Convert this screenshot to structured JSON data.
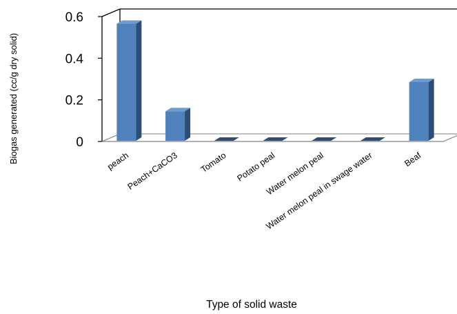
{
  "chart_data": {
    "type": "bar",
    "style": "3d-column",
    "categories": [
      "peach",
      "Peach+CaCO3",
      "Tomato",
      "Potato peal",
      "Water melon peal",
      "Water melon peal in swage water",
      "Beaf"
    ],
    "values": [
      0.565,
      0.145,
      0.0,
      0.0,
      0.0,
      0.0,
      0.285
    ],
    "ylim": [
      0,
      0.6
    ],
    "yticks": [
      "0",
      "0.2",
      "0.4",
      "0.6"
    ],
    "ytick_values": [
      0,
      0.2,
      0.4,
      0.6
    ],
    "xlabel": "Type of solid waste",
    "ylabel": "Biogas generated (cc/g dry solid)",
    "grid": false,
    "legend": "none",
    "colors": {
      "bar_front": "#4f81bd",
      "bar_side": "#2c4d75",
      "bar_top": "#6f9bd1",
      "axis": "#000000",
      "wall_line": "#808080"
    }
  }
}
